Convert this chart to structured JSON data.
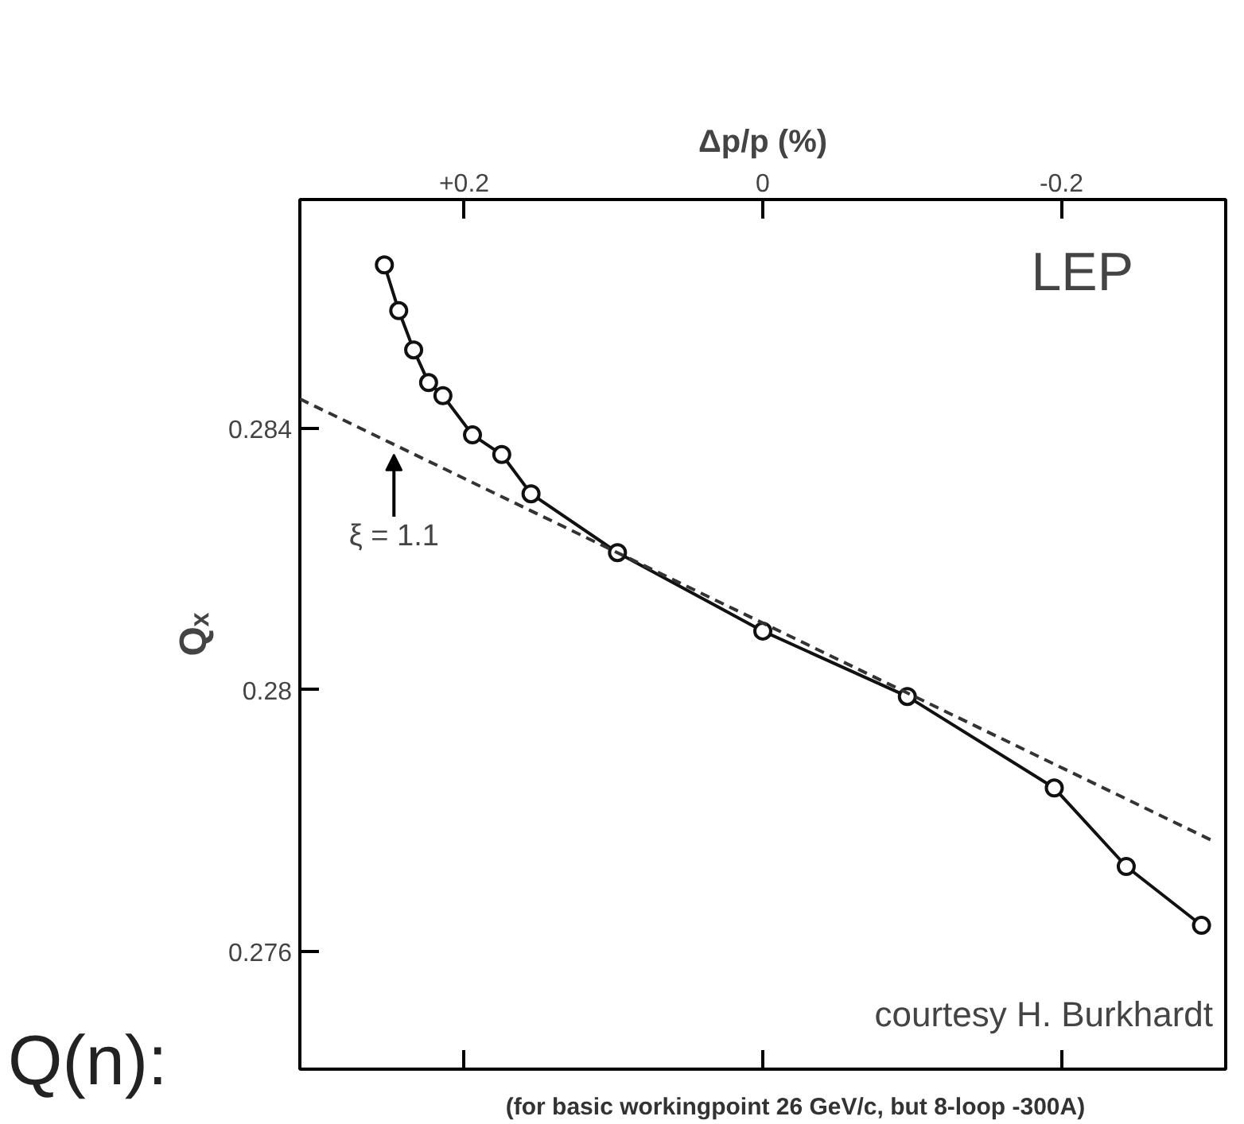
{
  "chart_data": {
    "type": "line",
    "xlabel": "Δp/p (%)",
    "ylabel": "Qₓ",
    "xlim": [
      0.31,
      -0.31
    ],
    "ylim": [
      0.2742,
      0.2875
    ],
    "xticks": [
      {
        "value": 0.2,
        "label": "+0.2"
      },
      0,
      {
        "value": -0.2,
        "label": "-0.2"
      }
    ],
    "yticks": [
      0.276,
      0.28,
      0.284
    ],
    "grid": false,
    "series": [
      {
        "color": "#111111",
        "marker": "circle",
        "line_style": "solid",
        "x": [
          0.2534,
          0.2438,
          0.2338,
          0.2238,
          0.2142,
          0.1944,
          0.1748,
          0.1552,
          0.0973,
          0.0,
          -0.0968,
          -0.1952,
          -0.2434,
          -0.2938
        ],
        "values": [
          0.2865,
          0.2858,
          0.2852,
          0.2847,
          0.2845,
          0.2839,
          0.2836,
          0.283,
          0.2821,
          0.2809,
          0.2799,
          0.2785,
          0.2773,
          0.2764
        ]
      },
      {
        "color": "#333333",
        "marker": "none",
        "line_style": "dashed",
        "x": [
          0.31,
          -0.3024
        ],
        "values": [
          0.28445,
          0.27768
        ]
      }
    ],
    "annotations": [
      {
        "text": "ξ = 1.1",
        "x": 0.247,
        "y": 0.2837
      },
      "LEP",
      "courtesy H. Burkhardt",
      "(for basic workingpoint 26 GeV/c, but 8-loop -300A)",
      "Q(n):"
    ]
  }
}
